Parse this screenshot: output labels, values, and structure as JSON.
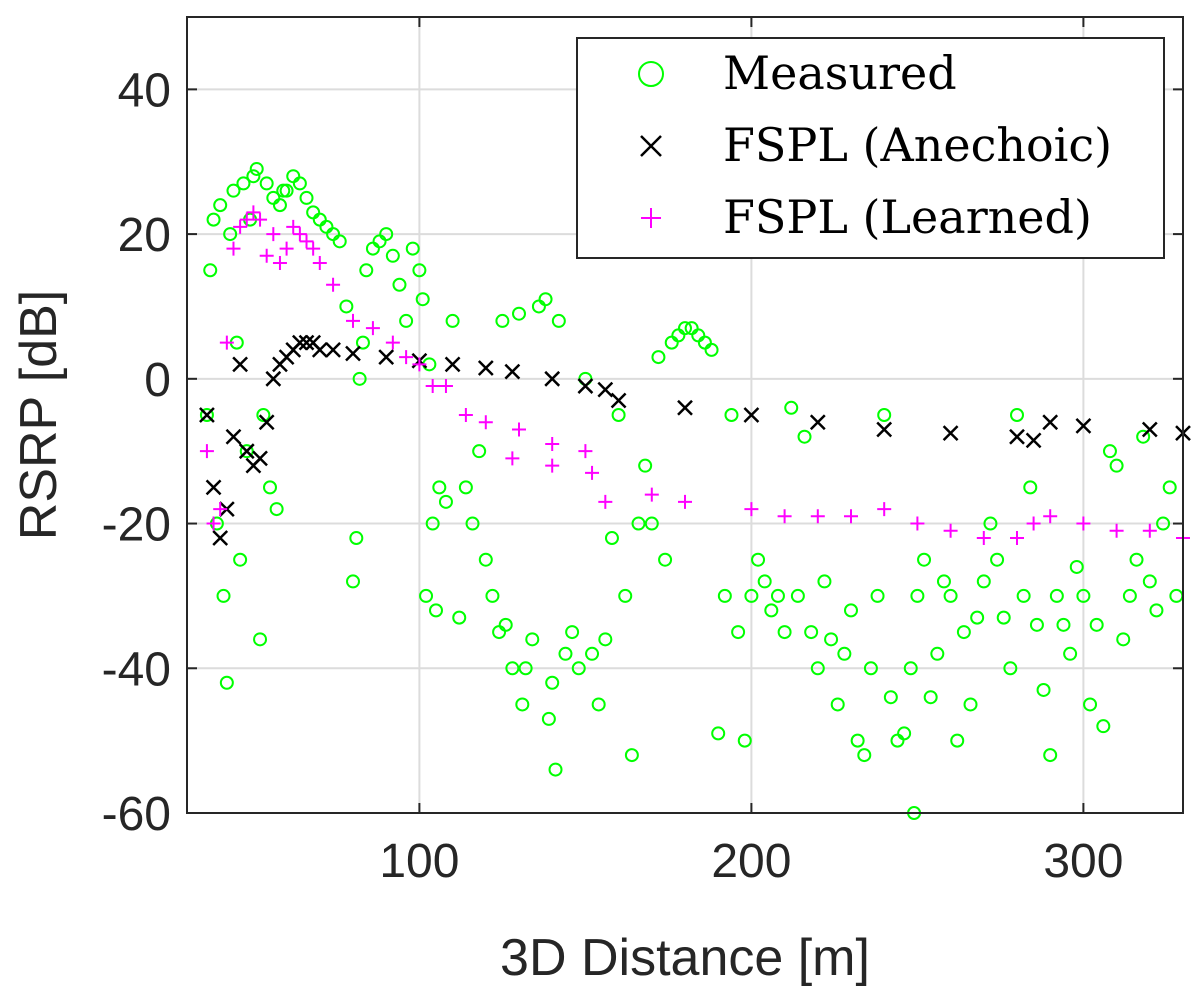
{
  "chart_data": {
    "type": "scatter",
    "title": "",
    "xlabel": "3D Distance [m]",
    "ylabel": "RSRP [dB]",
    "xlim": [
      30,
      330
    ],
    "ylim": [
      -60,
      50
    ],
    "xticks": [
      100,
      200,
      300
    ],
    "yticks": [
      40,
      20,
      0,
      -20,
      -40,
      -60
    ],
    "grid": true,
    "legend_position": "top-right",
    "series": [
      {
        "name": "Measured",
        "marker": "circle",
        "color": "#00ff00",
        "points": [
          [
            36,
            -5
          ],
          [
            37,
            15
          ],
          [
            38,
            22
          ],
          [
            39,
            -20
          ],
          [
            40,
            24
          ],
          [
            41,
            -30
          ],
          [
            42,
            -42
          ],
          [
            43,
            20
          ],
          [
            44,
            26
          ],
          [
            45,
            5
          ],
          [
            46,
            -25
          ],
          [
            47,
            27
          ],
          [
            48,
            -10
          ],
          [
            49,
            22
          ],
          [
            50,
            28
          ],
          [
            51,
            29
          ],
          [
            52,
            -36
          ],
          [
            53,
            -5
          ],
          [
            54,
            27
          ],
          [
            55,
            -15
          ],
          [
            56,
            25
          ],
          [
            57,
            -18
          ],
          [
            58,
            24
          ],
          [
            59,
            26
          ],
          [
            60,
            26
          ],
          [
            62,
            28
          ],
          [
            64,
            27
          ],
          [
            66,
            25
          ],
          [
            68,
            23
          ],
          [
            70,
            22
          ],
          [
            72,
            21
          ],
          [
            74,
            20
          ],
          [
            76,
            19
          ],
          [
            78,
            10
          ],
          [
            80,
            -28
          ],
          [
            81,
            -22
          ],
          [
            82,
            0
          ],
          [
            83,
            5
          ],
          [
            84,
            15
          ],
          [
            86,
            18
          ],
          [
            88,
            19
          ],
          [
            90,
            20
          ],
          [
            92,
            17
          ],
          [
            94,
            13
          ],
          [
            96,
            8
          ],
          [
            98,
            18
          ],
          [
            100,
            15
          ],
          [
            101,
            11
          ],
          [
            102,
            -30
          ],
          [
            103,
            2
          ],
          [
            104,
            -20
          ],
          [
            105,
            -32
          ],
          [
            106,
            -15
          ],
          [
            108,
            -17
          ],
          [
            110,
            8
          ],
          [
            112,
            -33
          ],
          [
            114,
            -15
          ],
          [
            116,
            -20
          ],
          [
            118,
            -10
          ],
          [
            120,
            -25
          ],
          [
            122,
            -30
          ],
          [
            124,
            -35
          ],
          [
            125,
            8
          ],
          [
            126,
            -34
          ],
          [
            128,
            -40
          ],
          [
            130,
            9
          ],
          [
            131,
            -45
          ],
          [
            132,
            -40
          ],
          [
            134,
            -36
          ],
          [
            136,
            10
          ],
          [
            138,
            11
          ],
          [
            139,
            -47
          ],
          [
            140,
            -42
          ],
          [
            141,
            -54
          ],
          [
            142,
            8
          ],
          [
            144,
            -38
          ],
          [
            146,
            -35
          ],
          [
            148,
            -40
          ],
          [
            150,
            0
          ],
          [
            152,
            -38
          ],
          [
            154,
            -45
          ],
          [
            156,
            -36
          ],
          [
            158,
            -22
          ],
          [
            160,
            -5
          ],
          [
            162,
            -30
          ],
          [
            164,
            -52
          ],
          [
            166,
            -20
          ],
          [
            168,
            -12
          ],
          [
            170,
            -20
          ],
          [
            172,
            3
          ],
          [
            174,
            -25
          ],
          [
            176,
            5
          ],
          [
            178,
            6
          ],
          [
            180,
            7
          ],
          [
            182,
            7
          ],
          [
            184,
            6
          ],
          [
            186,
            5
          ],
          [
            188,
            4
          ],
          [
            190,
            -49
          ],
          [
            192,
            -30
          ],
          [
            194,
            -5
          ],
          [
            196,
            -35
          ],
          [
            198,
            -50
          ],
          [
            200,
            -30
          ],
          [
            202,
            -25
          ],
          [
            204,
            -28
          ],
          [
            206,
            -32
          ],
          [
            208,
            -30
          ],
          [
            210,
            -35
          ],
          [
            212,
            -4
          ],
          [
            214,
            -30
          ],
          [
            216,
            -8
          ],
          [
            218,
            -35
          ],
          [
            220,
            -40
          ],
          [
            222,
            -28
          ],
          [
            224,
            -36
          ],
          [
            226,
            -45
          ],
          [
            228,
            -38
          ],
          [
            230,
            -32
          ],
          [
            232,
            -50
          ],
          [
            234,
            -52
          ],
          [
            236,
            -40
          ],
          [
            238,
            -30
          ],
          [
            240,
            -5
          ],
          [
            242,
            -44
          ],
          [
            244,
            -50
          ],
          [
            246,
            -49
          ],
          [
            248,
            -40
          ],
          [
            249,
            -60
          ],
          [
            250,
            -30
          ],
          [
            252,
            -25
          ],
          [
            254,
            -44
          ],
          [
            256,
            -38
          ],
          [
            258,
            -28
          ],
          [
            260,
            -30
          ],
          [
            262,
            -50
          ],
          [
            264,
            -35
          ],
          [
            266,
            -45
          ],
          [
            268,
            -33
          ],
          [
            270,
            -28
          ],
          [
            272,
            -20
          ],
          [
            274,
            -25
          ],
          [
            276,
            -33
          ],
          [
            278,
            -40
          ],
          [
            280,
            -5
          ],
          [
            282,
            -30
          ],
          [
            284,
            -15
          ],
          [
            286,
            -34
          ],
          [
            288,
            -43
          ],
          [
            290,
            -52
          ],
          [
            292,
            -30
          ],
          [
            294,
            -34
          ],
          [
            296,
            -38
          ],
          [
            298,
            -26
          ],
          [
            300,
            -30
          ],
          [
            302,
            -45
          ],
          [
            304,
            -34
          ],
          [
            306,
            -48
          ],
          [
            308,
            -10
          ],
          [
            310,
            -12
          ],
          [
            312,
            -36
          ],
          [
            314,
            -30
          ],
          [
            316,
            -25
          ],
          [
            318,
            -8
          ],
          [
            320,
            -28
          ],
          [
            322,
            -32
          ],
          [
            324,
            -20
          ],
          [
            326,
            -15
          ],
          [
            328,
            -30
          ]
        ]
      },
      {
        "name": "FSPL (Anechoic)",
        "marker": "x",
        "color": "#000000",
        "points": [
          [
            36,
            -5
          ],
          [
            38,
            -15
          ],
          [
            40,
            -22
          ],
          [
            42,
            -18
          ],
          [
            44,
            -8
          ],
          [
            46,
            2
          ],
          [
            48,
            -10
          ],
          [
            50,
            -12
          ],
          [
            52,
            -11
          ],
          [
            54,
            -6
          ],
          [
            56,
            0
          ],
          [
            58,
            2
          ],
          [
            60,
            3
          ],
          [
            62,
            4
          ],
          [
            64,
            5
          ],
          [
            66,
            5
          ],
          [
            68,
            5
          ],
          [
            70,
            4
          ],
          [
            74,
            4
          ],
          [
            80,
            3.5
          ],
          [
            90,
            3
          ],
          [
            100,
            2.5
          ],
          [
            110,
            2
          ],
          [
            120,
            1.5
          ],
          [
            128,
            1
          ],
          [
            140,
            0
          ],
          [
            150,
            -1
          ],
          [
            156,
            -1.5
          ],
          [
            160,
            -3
          ],
          [
            180,
            -4
          ],
          [
            200,
            -5
          ],
          [
            220,
            -6
          ],
          [
            240,
            -7
          ],
          [
            260,
            -7.5
          ],
          [
            280,
            -8
          ],
          [
            285,
            -8.5
          ],
          [
            290,
            -6
          ],
          [
            300,
            -6.5
          ],
          [
            320,
            -7
          ],
          [
            330,
            -7.5
          ]
        ]
      },
      {
        "name": "FSPL (Learned)",
        "marker": "plus",
        "color": "#ff00ff",
        "points": [
          [
            36,
            -10
          ],
          [
            38,
            -20
          ],
          [
            40,
            -18
          ],
          [
            42,
            5
          ],
          [
            44,
            18
          ],
          [
            46,
            21
          ],
          [
            48,
            22
          ],
          [
            50,
            23
          ],
          [
            52,
            22
          ],
          [
            54,
            17
          ],
          [
            56,
            20
          ],
          [
            58,
            16
          ],
          [
            60,
            18
          ],
          [
            62,
            21
          ],
          [
            64,
            20
          ],
          [
            66,
            19
          ],
          [
            68,
            18
          ],
          [
            70,
            16
          ],
          [
            74,
            13
          ],
          [
            80,
            8
          ],
          [
            86,
            7
          ],
          [
            92,
            5
          ],
          [
            96,
            3
          ],
          [
            100,
            2
          ],
          [
            104,
            -1
          ],
          [
            108,
            -1
          ],
          [
            114,
            -5
          ],
          [
            120,
            -6
          ],
          [
            130,
            -7
          ],
          [
            140,
            -9
          ],
          [
            150,
            -10
          ],
          [
            128,
            -11
          ],
          [
            140,
            -12
          ],
          [
            152,
            -13
          ],
          [
            156,
            -17
          ],
          [
            170,
            -16
          ],
          [
            180,
            -17
          ],
          [
            200,
            -18
          ],
          [
            210,
            -19
          ],
          [
            220,
            -19
          ],
          [
            230,
            -19
          ],
          [
            240,
            -18
          ],
          [
            250,
            -20
          ],
          [
            260,
            -21
          ],
          [
            270,
            -22
          ],
          [
            280,
            -22
          ],
          [
            285,
            -20
          ],
          [
            290,
            -19
          ],
          [
            300,
            -20
          ],
          [
            310,
            -21
          ],
          [
            320,
            -21
          ],
          [
            330,
            -22
          ]
        ]
      }
    ]
  }
}
